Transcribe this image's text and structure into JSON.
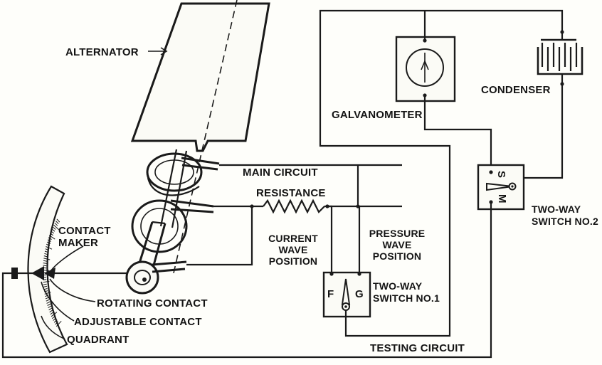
{
  "labels": {
    "alternator": "ALTERNATOR",
    "main_circuit": "MAIN CIRCUIT",
    "resistance": "RESISTANCE",
    "current_wave_position": [
      "CURRENT",
      "WAVE",
      "POSITION"
    ],
    "pressure_wave_position": [
      "PRESSURE",
      "WAVE",
      "POSITION"
    ],
    "two_way_switch_1": [
      "TWO-WAY",
      "SWITCH NO.1"
    ],
    "two_way_switch_2": [
      "TWO-WAY",
      "SWITCH NO.2"
    ],
    "galvanometer": "GALVANOMETER",
    "condenser": "CONDENSER",
    "contact_maker": [
      "CONTACT",
      "MAKER"
    ],
    "rotating_contact": "ROTATING CONTACT",
    "adjustable_contact": "ADJUSTABLE CONTACT",
    "quadrant": "QUADRANT",
    "testing_circuit": "TESTING CIRCUIT"
  },
  "switch_terminals": {
    "switch1_left": "F",
    "switch1_right": "G",
    "switch2_top": "S",
    "switch2_bottom": "M"
  },
  "colors": {
    "ink": "#1a1a1a",
    "paper": "#fefefa"
  }
}
